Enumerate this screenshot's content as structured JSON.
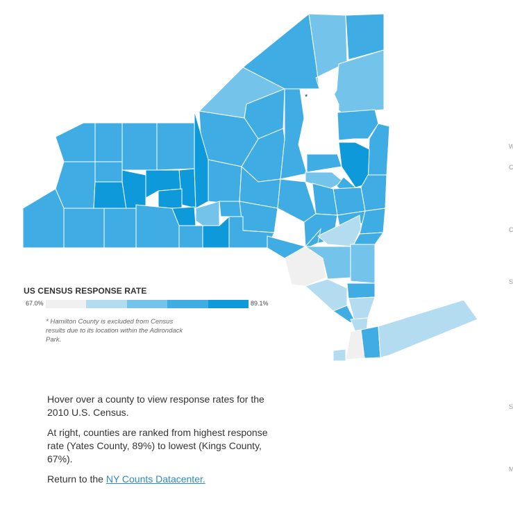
{
  "legend": {
    "title": "US CENSUS RESPONSE RATE",
    "min_label": "67.0%",
    "max_label": "89.1%",
    "colors": [
      "#f0f0f0",
      "#b3dcf0",
      "#74c3ea",
      "#3fadE3",
      "#0e9ada"
    ]
  },
  "map": {
    "excluded_marker": "*",
    "footnote": "* Hamilton County is excluded from Census results due to its location within the Adirondack Park."
  },
  "info": {
    "hover_text": "Hover over a county to view response rates for the 2010 U.S. Census.",
    "ranking_text": "At right, counties are ranked from highest response rate (Yates County, 89%) to lowest (Kings County, 67%).",
    "return_prefix": "Return to the ",
    "return_link": "NY Counts Datacenter."
  },
  "edge_labels": [
    "W",
    "C",
    "C",
    "S",
    "S",
    "M"
  ]
}
